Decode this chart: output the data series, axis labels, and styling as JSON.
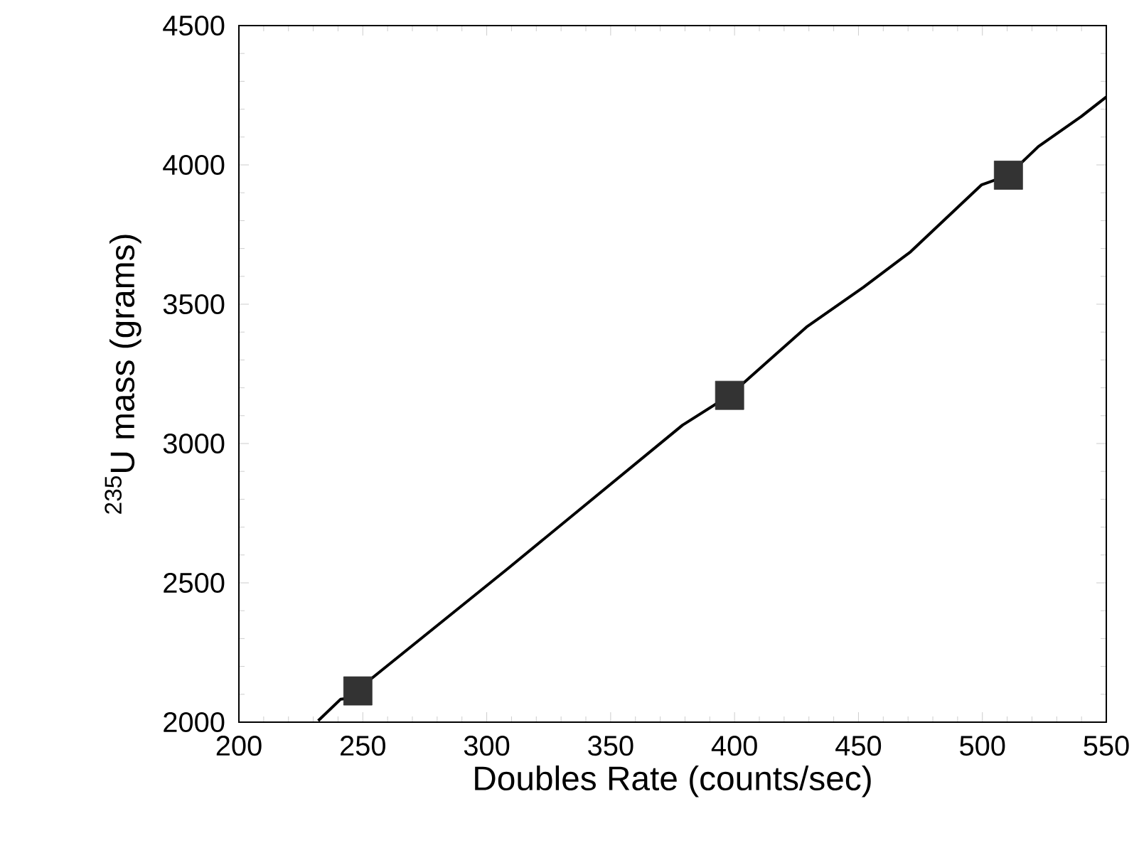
{
  "chart_data": {
    "type": "line",
    "xlabel": "Doubles Rate (counts/sec)",
    "ylabel": "$^{235}$U mass (grams)",
    "xlim": [
      200,
      550
    ],
    "ylim": [
      2000,
      4500
    ],
    "xticks": [
      200,
      250,
      300,
      350,
      400,
      450,
      500,
      550
    ],
    "yticks": [
      2000,
      2500,
      3000,
      3500,
      4000,
      4500
    ],
    "grid": false,
    "series": [
      {
        "color": "#000000",
        "marker": "none",
        "x": [
          232,
          241,
          248,
          253,
          308.5,
          379,
          398,
          429,
          452,
          471,
          499.6,
          510.5,
          522.6,
          539.8,
          550
        ],
        "values": [
          2005,
          2082,
          2090,
          2153,
          2551,
          3066,
          3173,
          3418,
          3561,
          3688,
          3928,
          3963,
          4066,
          4173,
          4244
        ]
      },
      {
        "type": "scatter",
        "color": "#333333",
        "marker": "square",
        "x": [
          248,
          398,
          510.5
        ],
        "values": [
          2112,
          3173,
          3963
        ]
      }
    ]
  }
}
